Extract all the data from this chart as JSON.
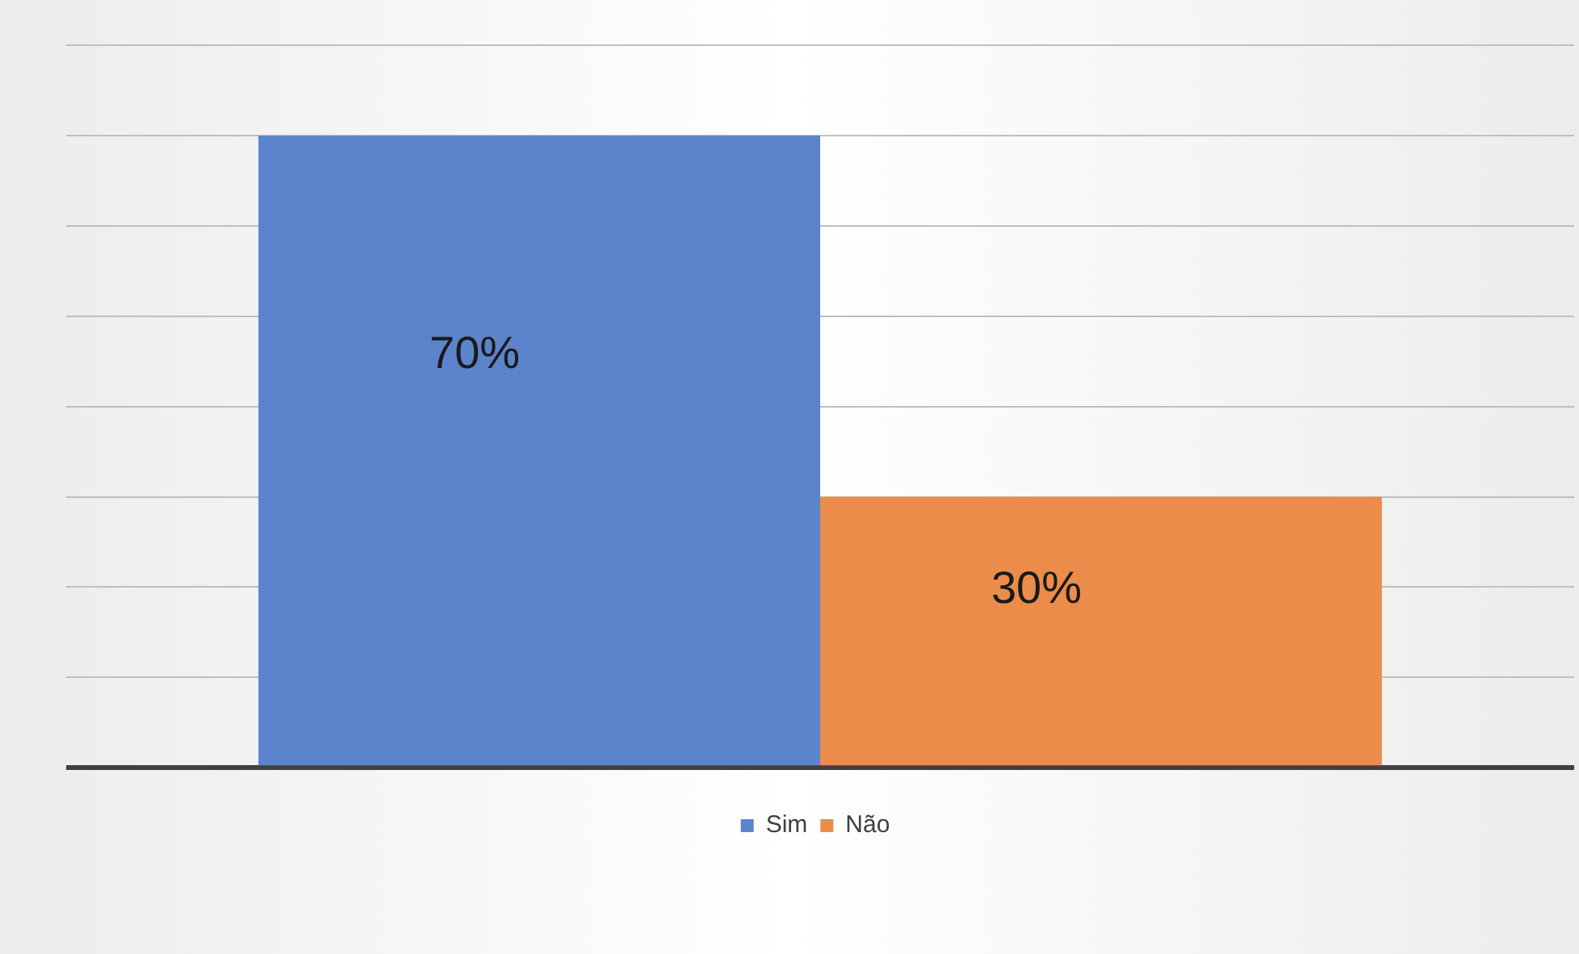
{
  "chart_data": {
    "type": "bar",
    "categories": [
      null
    ],
    "series": [
      {
        "name": "Sim",
        "color": "#5b84cd",
        "values": [
          70
        ],
        "value_labels": [
          "70%"
        ]
      },
      {
        "name": "Não",
        "color": "#eb8c4b",
        "values": [
          30
        ],
        "value_labels": [
          "30%"
        ]
      }
    ],
    "ylim": [
      0,
      80
    ],
    "yticks": [
      {
        "value": 0,
        "label": null
      },
      {
        "value": 10,
        "label": null
      },
      {
        "value": 20,
        "label": null
      },
      {
        "value": 30,
        "label": null
      },
      {
        "value": 40,
        "label": null
      },
      {
        "value": 50,
        "label": null
      },
      {
        "value": 60,
        "label": null
      },
      {
        "value": 70,
        "label": null
      },
      {
        "value": 80,
        "label": null
      }
    ],
    "grid": "y",
    "legend": "bottom"
  }
}
